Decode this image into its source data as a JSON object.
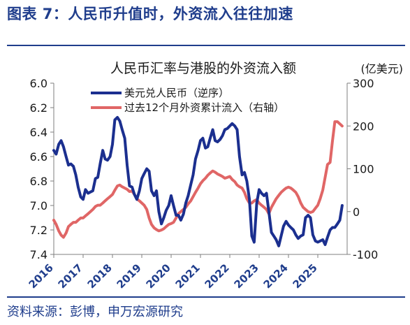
{
  "figure": {
    "title": "图表 7：人民币升值时，外资流入往往加速",
    "source": "资料来源：彭博，申万宏源研究"
  },
  "chart_data": {
    "type": "line",
    "title": "人民币汇率与港股的外资流入额",
    "y2_unit": "(亿美元)",
    "x_ticks": [
      "2016",
      "2017",
      "2018",
      "2019",
      "2020",
      "2021",
      "2022",
      "2023",
      "2024",
      "2025"
    ],
    "x_range": [
      2016.0,
      2026.0
    ],
    "y_left": {
      "range": [
        6.0,
        7.4
      ],
      "inverted": true,
      "ticks": [
        "6.0",
        "6.2",
        "6.4",
        "6.6",
        "6.8",
        "7.0",
        "7.2",
        "7.4"
      ]
    },
    "y_right": {
      "range": [
        -100,
        300
      ],
      "ticks": [
        "300",
        "200",
        "100",
        "0",
        "-100"
      ]
    },
    "legend_position": "top-left",
    "grid": false,
    "colors": {
      "usdcny": "#1b2f8f",
      "flows": "#e06666",
      "accent": "#1f3d8c"
    },
    "series": [
      {
        "name": "美元兑人民币（逆序）",
        "axis": "left",
        "x": [
          2016.0,
          2016.08,
          2016.17,
          2016.25,
          2016.33,
          2016.42,
          2016.5,
          2016.58,
          2016.67,
          2016.75,
          2016.83,
          2016.92,
          2017.0,
          2017.08,
          2017.17,
          2017.25,
          2017.33,
          2017.42,
          2017.5,
          2017.58,
          2017.67,
          2017.75,
          2017.83,
          2017.92,
          2018.0,
          2018.08,
          2018.17,
          2018.25,
          2018.33,
          2018.42,
          2018.5,
          2018.58,
          2018.67,
          2018.75,
          2018.83,
          2018.92,
          2019.0,
          2019.08,
          2019.17,
          2019.25,
          2019.33,
          2019.42,
          2019.5,
          2019.58,
          2019.67,
          2019.75,
          2019.83,
          2019.92,
          2020.0,
          2020.08,
          2020.17,
          2020.25,
          2020.33,
          2020.42,
          2020.5,
          2020.58,
          2020.67,
          2020.75,
          2020.83,
          2020.92,
          2021.0,
          2021.08,
          2021.17,
          2021.25,
          2021.33,
          2021.42,
          2021.5,
          2021.58,
          2021.67,
          2021.75,
          2021.83,
          2021.92,
          2022.0,
          2022.08,
          2022.17,
          2022.25,
          2022.33,
          2022.42,
          2022.5,
          2022.58,
          2022.67,
          2022.75,
          2022.83,
          2022.92,
          2023.0,
          2023.08,
          2023.17,
          2023.25,
          2023.33,
          2023.42,
          2023.5,
          2023.58,
          2023.67,
          2023.75,
          2023.83,
          2023.92,
          2024.0,
          2024.08,
          2024.17,
          2024.25,
          2024.33,
          2024.42,
          2024.5,
          2024.58,
          2024.67,
          2024.75,
          2024.83,
          2024.92,
          2025.0,
          2025.08,
          2025.17,
          2025.25,
          2025.33,
          2025.42,
          2025.5,
          2025.58,
          2025.67,
          2025.75,
          2025.83
        ],
        "values": [
          6.55,
          6.58,
          6.5,
          6.47,
          6.52,
          6.6,
          6.67,
          6.66,
          6.68,
          6.75,
          6.85,
          6.93,
          6.95,
          6.87,
          6.9,
          6.89,
          6.88,
          6.78,
          6.77,
          6.66,
          6.55,
          6.62,
          6.63,
          6.6,
          6.5,
          6.3,
          6.28,
          6.31,
          6.38,
          6.45,
          6.67,
          6.84,
          6.85,
          6.91,
          6.95,
          6.88,
          6.78,
          6.74,
          6.7,
          6.72,
          6.88,
          6.92,
          6.88,
          7.05,
          7.15,
          7.1,
          7.04,
          7.0,
          6.92,
          7.0,
          7.08,
          7.08,
          7.12,
          7.07,
          6.98,
          6.92,
          6.83,
          6.75,
          6.62,
          6.55,
          6.47,
          6.45,
          6.53,
          6.52,
          6.45,
          6.38,
          6.47,
          6.48,
          6.46,
          6.43,
          6.38,
          6.37,
          6.35,
          6.33,
          6.35,
          6.38,
          6.6,
          6.75,
          6.73,
          6.8,
          6.95,
          7.25,
          7.3,
          6.98,
          6.87,
          6.9,
          6.92,
          6.9,
          7.05,
          7.22,
          7.25,
          7.28,
          7.33,
          7.25,
          7.17,
          7.13,
          7.16,
          7.18,
          7.2,
          7.24,
          7.27,
          7.25,
          7.24,
          7.1,
          7.08,
          7.1,
          7.24,
          7.29,
          7.3,
          7.29,
          7.28,
          7.32,
          7.26,
          7.2,
          7.18,
          7.18,
          7.15,
          7.12,
          7.0
        ]
      },
      {
        "name": "过去12个月外资累计流入（右轴）",
        "axis": "right",
        "x": [
          2016.0,
          2016.08,
          2016.17,
          2016.25,
          2016.33,
          2016.42,
          2016.5,
          2016.58,
          2016.67,
          2016.75,
          2016.83,
          2016.92,
          2017.0,
          2017.08,
          2017.17,
          2017.25,
          2017.33,
          2017.42,
          2017.5,
          2017.58,
          2017.67,
          2017.75,
          2017.83,
          2017.92,
          2018.0,
          2018.08,
          2018.17,
          2018.25,
          2018.33,
          2018.42,
          2018.5,
          2018.58,
          2018.67,
          2018.75,
          2018.83,
          2018.92,
          2019.0,
          2019.08,
          2019.17,
          2019.25,
          2019.33,
          2019.42,
          2019.5,
          2019.58,
          2019.67,
          2019.75,
          2019.83,
          2019.92,
          2020.0,
          2020.08,
          2020.17,
          2020.25,
          2020.33,
          2020.42,
          2020.5,
          2020.58,
          2020.67,
          2020.75,
          2020.83,
          2020.92,
          2021.0,
          2021.08,
          2021.17,
          2021.25,
          2021.33,
          2021.42,
          2021.5,
          2021.58,
          2021.67,
          2021.75,
          2021.83,
          2021.92,
          2022.0,
          2022.08,
          2022.17,
          2022.25,
          2022.33,
          2022.42,
          2022.5,
          2022.58,
          2022.67,
          2022.75,
          2022.83,
          2022.92,
          2023.0,
          2023.08,
          2023.17,
          2023.25,
          2023.33,
          2023.42,
          2023.5,
          2023.58,
          2023.67,
          2023.75,
          2023.83,
          2023.92,
          2024.0,
          2024.08,
          2024.17,
          2024.25,
          2024.33,
          2024.42,
          2024.5,
          2024.58,
          2024.67,
          2024.75,
          2024.83,
          2024.92,
          2025.0,
          2025.08,
          2025.17,
          2025.25,
          2025.33,
          2025.42,
          2025.5,
          2025.58,
          2025.67,
          2025.75,
          2025.83
        ],
        "values": [
          -20,
          -30,
          -45,
          -55,
          -60,
          -50,
          -35,
          -30,
          -25,
          -25,
          -20,
          -15,
          -15,
          -10,
          -5,
          0,
          5,
          12,
          15,
          15,
          20,
          25,
          30,
          35,
          40,
          50,
          60,
          62,
          58,
          55,
          52,
          47,
          48,
          40,
          30,
          25,
          20,
          15,
          5,
          -15,
          -30,
          -38,
          -42,
          -45,
          -43,
          -40,
          -35,
          -30,
          -28,
          -25,
          -15,
          -5,
          0,
          5,
          10,
          18,
          25,
          35,
          45,
          55,
          65,
          72,
          78,
          85,
          90,
          95,
          92,
          88,
          85,
          82,
          78,
          80,
          82,
          75,
          70,
          62,
          58,
          55,
          45,
          30,
          20,
          20,
          25,
          28,
          20,
          15,
          10,
          5,
          -5,
          10,
          20,
          30,
          38,
          45,
          50,
          55,
          57,
          55,
          50,
          45,
          35,
          20,
          10,
          5,
          0,
          -2,
          0,
          8,
          15,
          30,
          50,
          80,
          110,
          115,
          165,
          210,
          210,
          205,
          200
        ]
      }
    ]
  }
}
